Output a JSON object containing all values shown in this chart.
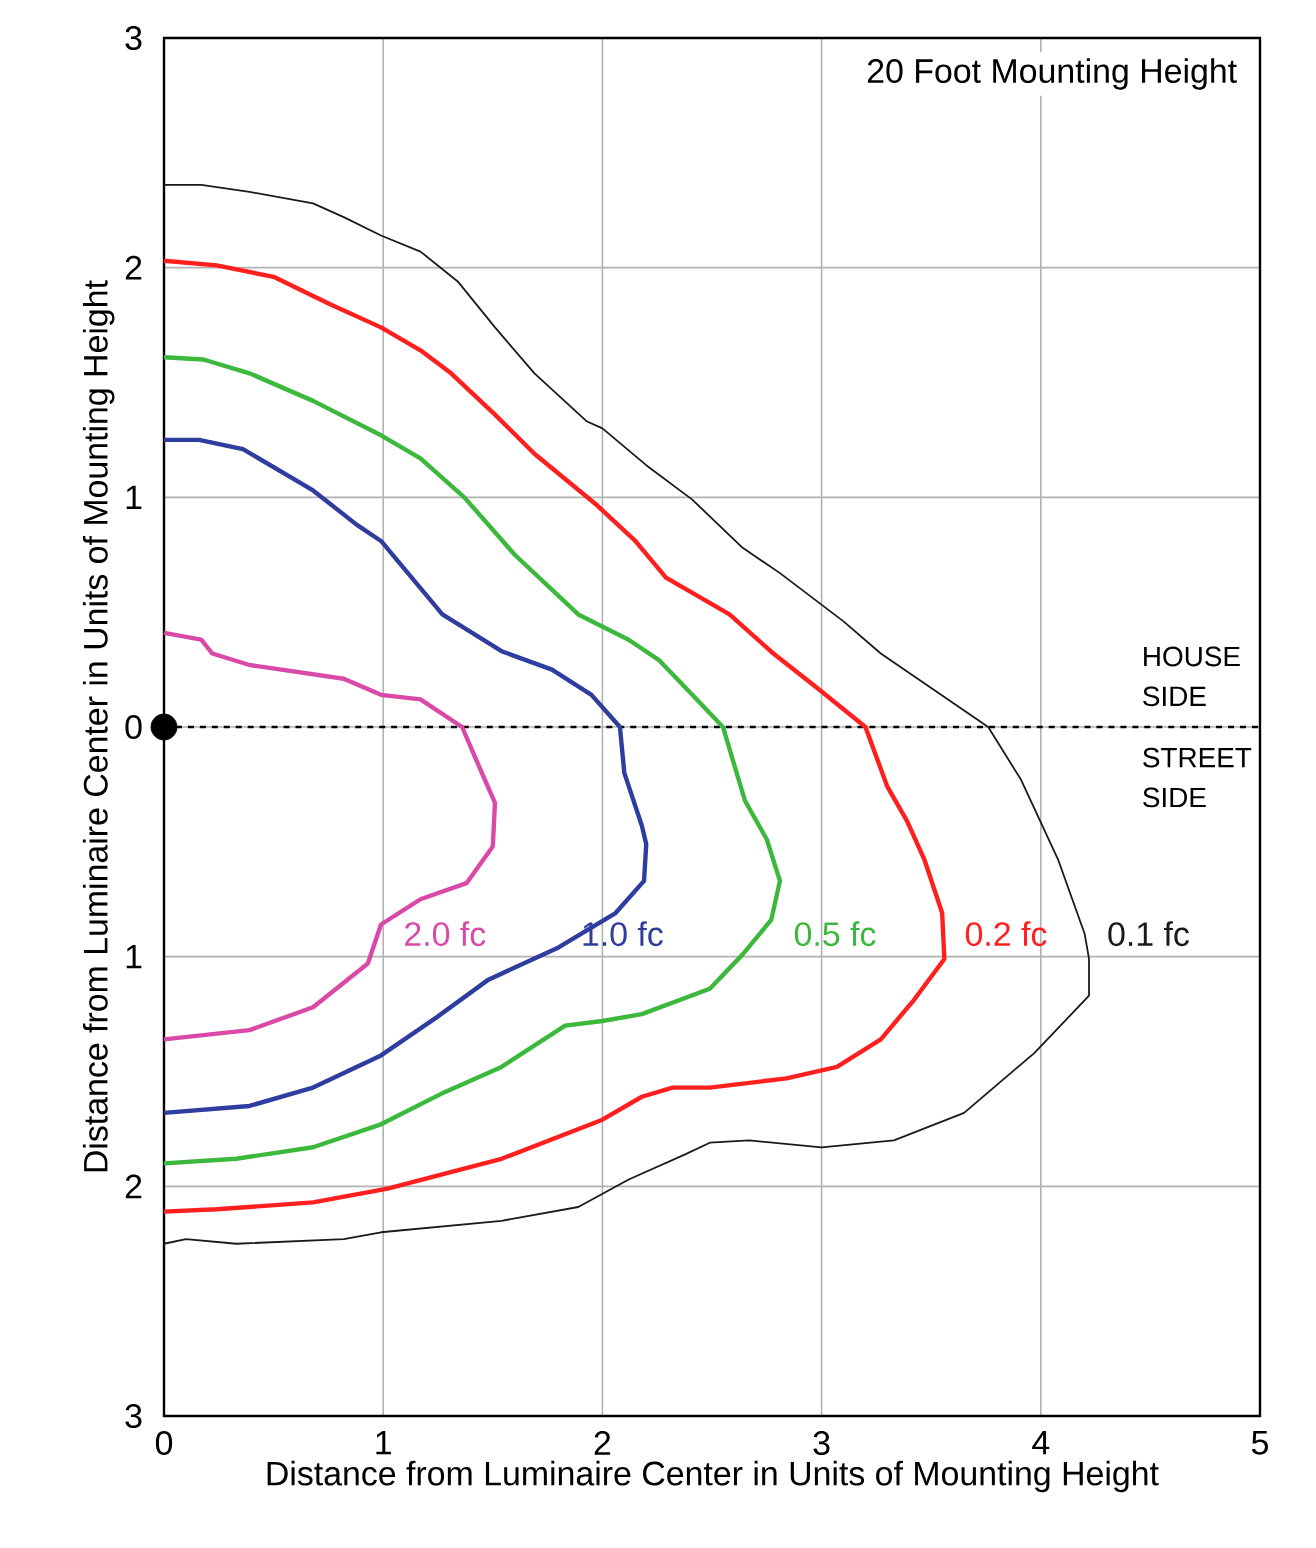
{
  "chart_data": {
    "type": "line",
    "title": "20 Foot Mounting Height",
    "xlabel": "Distance from Luminaire Center in Units of Mounting Height",
    "ylabel": "Distance from Luminaire Center in Units of Mounting Height",
    "xlim": [
      0,
      5
    ],
    "ylim": [
      -3,
      3
    ],
    "xticks": [
      0,
      1,
      2,
      3,
      4,
      5
    ],
    "yticks": [
      {
        "value": -3,
        "label": "3"
      },
      {
        "value": -2,
        "label": "2"
      },
      {
        "value": -1,
        "label": "1"
      },
      0,
      1,
      2,
      3
    ],
    "grid": true,
    "marker": "none",
    "line_style": "solid",
    "ref_lines": [
      {
        "axis": "y",
        "value": 0,
        "color": "#000000",
        "line_style": "dashed"
      }
    ],
    "annotations": [
      "HOUSE SIDE",
      "STREET SIDE"
    ],
    "series": [
      {
        "name": "0.1 fc",
        "color": "#1a1a1a",
        "x": [
          0,
          0.17,
          0.39,
          0.68,
          0.82,
          0.99,
          1.17,
          1.34,
          1.51,
          1.69,
          1.93,
          2.0,
          2.2,
          2.41,
          2.64,
          2.81,
          3.1,
          3.27,
          3.5,
          3.76,
          3.91,
          4.08,
          4.2,
          4.22,
          4.22,
          3.97,
          3.65,
          3.33,
          3.0,
          2.67,
          2.49,
          2.38,
          2.12,
          1.89,
          1.54,
          0.99,
          0.82,
          0.33,
          0.1,
          0
        ],
        "values": [
          2.36,
          2.36,
          2.33,
          2.28,
          2.22,
          2.14,
          2.07,
          1.94,
          1.74,
          1.54,
          1.33,
          1.3,
          1.14,
          0.99,
          0.78,
          0.67,
          0.46,
          0.32,
          0.17,
          0,
          -0.23,
          -0.58,
          -0.9,
          -1.01,
          -1.17,
          -1.42,
          -1.68,
          -1.8,
          -1.83,
          -1.8,
          -1.81,
          -1.86,
          -1.97,
          -2.09,
          -2.15,
          -2.2,
          -2.23,
          -2.25,
          -2.23,
          -2.25
        ]
      },
      {
        "name": "0.2 fc",
        "color": "#ff1f1f",
        "x": [
          0,
          0.24,
          0.5,
          0.76,
          0.99,
          1.17,
          1.31,
          1.51,
          1.69,
          1.97,
          2.15,
          2.29,
          2.58,
          2.78,
          2.98,
          3.2,
          3.3,
          3.39,
          3.47,
          3.55,
          3.56,
          3.42,
          3.27,
          3.07,
          2.84,
          2.49,
          2.32,
          2.18,
          2.0,
          1.54,
          1.02,
          0.68,
          0.24,
          0
        ],
        "values": [
          2.03,
          2.01,
          1.96,
          1.84,
          1.74,
          1.64,
          1.54,
          1.36,
          1.19,
          0.97,
          0.81,
          0.65,
          0.49,
          0.32,
          0.17,
          0,
          -0.26,
          -0.41,
          -0.58,
          -0.81,
          -1.01,
          -1.19,
          -1.36,
          -1.48,
          -1.53,
          -1.57,
          -1.57,
          -1.61,
          -1.71,
          -1.88,
          -2.01,
          -2.07,
          -2.1,
          -2.11
        ]
      },
      {
        "name": "0.5 fc",
        "color": "#3cb93c",
        "x": [
          0,
          0.18,
          0.39,
          0.68,
          0.99,
          1.17,
          1.37,
          1.6,
          1.89,
          2.12,
          2.26,
          2.41,
          2.55,
          2.65,
          2.75,
          2.81,
          2.77,
          2.64,
          2.49,
          2.18,
          2.0,
          1.83,
          1.54,
          1.28,
          0.99,
          0.68,
          0.33,
          0
        ],
        "values": [
          1.61,
          1.6,
          1.54,
          1.42,
          1.27,
          1.17,
          1.0,
          0.75,
          0.49,
          0.38,
          0.29,
          0.14,
          0,
          -0.32,
          -0.49,
          -0.67,
          -0.84,
          -0.99,
          -1.14,
          -1.25,
          -1.28,
          -1.3,
          -1.48,
          -1.59,
          -1.73,
          -1.83,
          -1.88,
          -1.9
        ]
      },
      {
        "name": "1.0 fc",
        "color": "#2e3d9e",
        "x": [
          0,
          0.16,
          0.36,
          0.68,
          0.88,
          0.99,
          1.27,
          1.54,
          1.77,
          1.95,
          2.08,
          2.1,
          2.18,
          2.2,
          2.19,
          2.06,
          1.8,
          1.48,
          1.25,
          0.99,
          0.68,
          0.39,
          0
        ],
        "values": [
          1.25,
          1.25,
          1.21,
          1.03,
          0.88,
          0.81,
          0.49,
          0.33,
          0.25,
          0.14,
          0,
          -0.2,
          -0.43,
          -0.51,
          -0.67,
          -0.81,
          -0.96,
          -1.1,
          -1.26,
          -1.43,
          -1.57,
          -1.65,
          -1.68
        ]
      },
      {
        "name": "2.0 fc",
        "color": "#d94aa8",
        "x": [
          0,
          0.17,
          0.22,
          0.39,
          0.82,
          0.99,
          1.17,
          1.36,
          1.45,
          1.51,
          1.5,
          1.38,
          1.17,
          0.99,
          0.93,
          0.68,
          0.39,
          0
        ],
        "values": [
          0.41,
          0.38,
          0.32,
          0.27,
          0.21,
          0.14,
          0.12,
          0,
          -0.2,
          -0.33,
          -0.52,
          -0.68,
          -0.75,
          -0.86,
          -1.03,
          -1.22,
          -1.32,
          -1.36
        ]
      },
      {
        "type": "scatter",
        "marker": "circle",
        "color": "#000000",
        "x": [
          0
        ],
        "values": [
          0
        ]
      }
    ]
  }
}
